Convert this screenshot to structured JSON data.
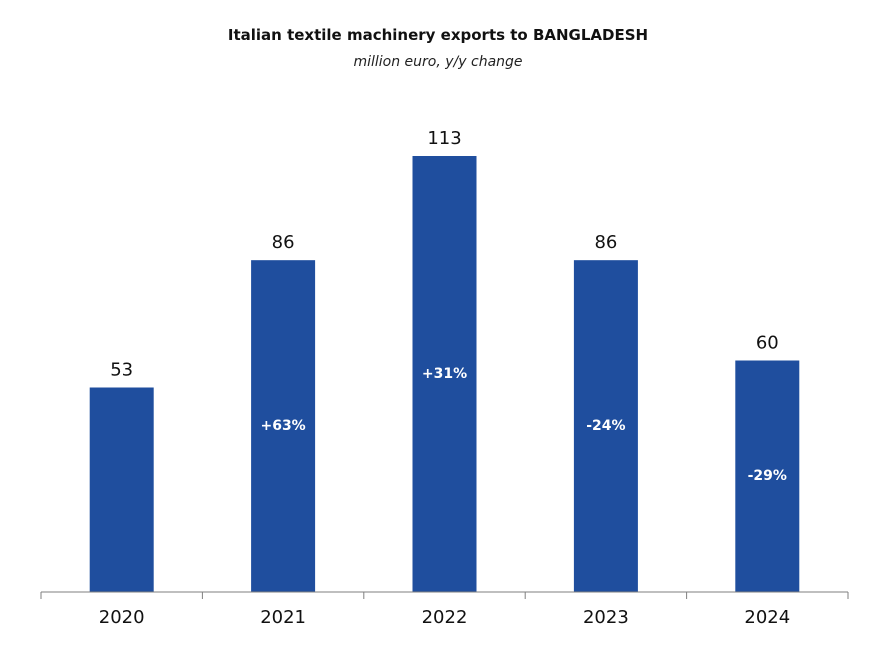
{
  "chart_data": {
    "type": "bar",
    "title": "Italian textile machinery exports to BANGLADESH",
    "subtitle": "million euro, y/y change",
    "categories": [
      "2020",
      "2021",
      "2022",
      "2023",
      "2024"
    ],
    "values": [
      53,
      86,
      113,
      86,
      60
    ],
    "changes": [
      "",
      "+63%",
      "+31%",
      "-24%",
      "-29%"
    ],
    "ylim": [
      0,
      113
    ],
    "grid": false,
    "legend": "none",
    "colors": {
      "bar": "#1f4e9e",
      "axis": "#7f7f7f",
      "text": "#111111",
      "change_text": "#ffffff"
    }
  }
}
